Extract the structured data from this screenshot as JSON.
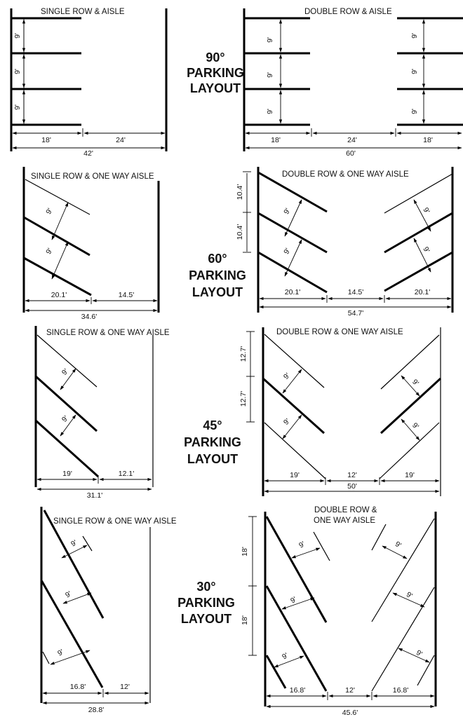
{
  "p90": {
    "single": {
      "title": "SINGLE ROW & AISLE",
      "stall": "9'",
      "depth": "18'",
      "aisle": "24'",
      "total": "42'"
    },
    "double": {
      "title": "DOUBLE ROW & AISLE",
      "stall": "9'",
      "depth": "18'",
      "aisle": "24'",
      "total": "60'"
    },
    "label": [
      "90°",
      "PARKING",
      "LAYOUT"
    ]
  },
  "p60": {
    "single": {
      "title": "SINGLE ROW & ONE WAY AISLE",
      "stall": "9'",
      "depth": "20.1'",
      "aisle": "14.5'",
      "total": "34.6'"
    },
    "double": {
      "title": "DOUBLE ROW & ONE WAY AISLE",
      "stall": "9'",
      "curb": "10.4'",
      "depth": "20.1'",
      "aisle": "14.5'",
      "total": "54.7'"
    },
    "label": [
      "60°",
      "PARKING",
      "LAYOUT"
    ]
  },
  "p45": {
    "single": {
      "title": "SINGLE ROW & ONE WAY AISLE",
      "stall": "9'",
      "depth": "19'",
      "aisle": "12.1'",
      "total": "31.1'"
    },
    "double": {
      "title": "DOUBLE ROW & ONE WAY AISLE",
      "stall": "9'",
      "curb": "12.7'",
      "depth": "19'",
      "aisle": "12'",
      "total": "50'"
    },
    "label": [
      "45°",
      "PARKING",
      "LAYOUT"
    ]
  },
  "p30": {
    "single": {
      "title": "SINGLE ROW & ONE WAY AISLE",
      "stall": "9'",
      "depth": "16.8'",
      "aisle": "12'",
      "total": "28.8'"
    },
    "double": {
      "title1": "DOUBLE ROW &",
      "title2": "ONE WAY AISLE",
      "stall": "9'",
      "curb": "18'",
      "depth": "16.8'",
      "aisle": "12'",
      "total": "45.6'"
    },
    "label": [
      "30°",
      "PARKING",
      "LAYOUT"
    ]
  }
}
